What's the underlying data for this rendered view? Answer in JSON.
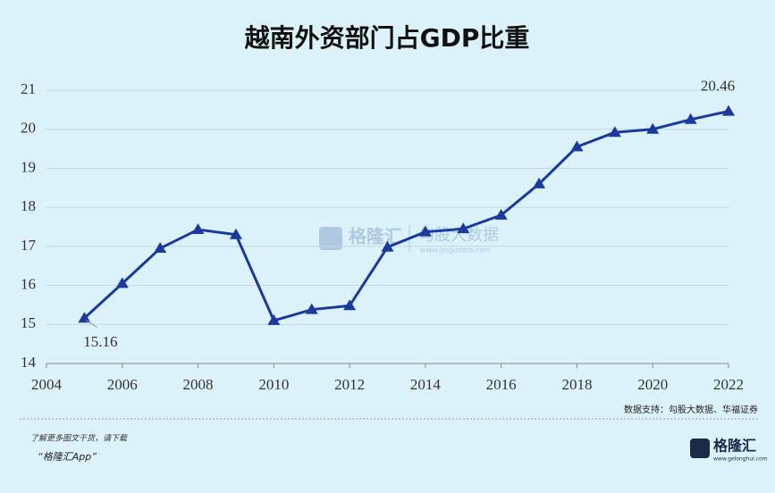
{
  "chart_data": {
    "type": "line",
    "title": "越南外资部门占GDP比重",
    "x": [
      2005,
      2006,
      2007,
      2008,
      2009,
      2010,
      2011,
      2012,
      2013,
      2014,
      2015,
      2016,
      2017,
      2018,
      2019,
      2020,
      2021,
      2022
    ],
    "series": [
      {
        "color": "#1c3a9b",
        "values": [
          15.16,
          16.05,
          16.95,
          17.43,
          17.3,
          15.1,
          15.38,
          15.48,
          16.98,
          17.37,
          17.45,
          17.8,
          18.6,
          19.55,
          19.92,
          20.0,
          20.25,
          20.46
        ],
        "value_labels": [
          "15.16",
          null,
          null,
          null,
          null,
          null,
          null,
          null,
          null,
          null,
          null,
          null,
          null,
          null,
          null,
          null,
          null,
          "20.46"
        ]
      }
    ],
    "xlim": [
      2004,
      2022
    ],
    "xticks": [
      2004,
      2006,
      2008,
      2010,
      2012,
      2014,
      2016,
      2018,
      2020,
      2022
    ],
    "ylim": [
      14,
      21
    ],
    "yticks": [
      14,
      15,
      16,
      17,
      18,
      19,
      20,
      21
    ],
    "grid": true,
    "source": "数据支持：勾股大数据、华福证券"
  },
  "watermark": {
    "brand": "格隆汇",
    "partner": "勾股大数据",
    "url": "www.gogudata.com"
  },
  "footer": {
    "line1": "了解更多图文干货，请下载",
    "line2": "“格隆汇App”",
    "logo": "格隆汇",
    "logo_url": "www.gelonghui.com"
  }
}
